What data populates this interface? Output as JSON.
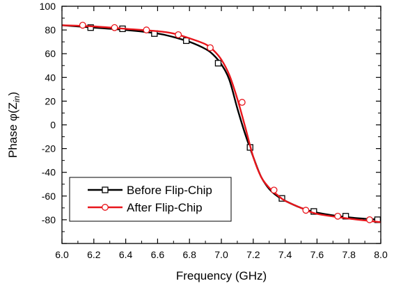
{
  "chart_data": {
    "type": "line",
    "xlabel": "Frequency (GHz)",
    "ylabel_main": "Phase φ(Z",
    "ylabel_sub": "in",
    "ylabel_close": ")",
    "xlim": [
      6.0,
      8.0
    ],
    "ylim": [
      -100,
      100
    ],
    "xticks": [
      6.0,
      6.2,
      6.4,
      6.6,
      6.8,
      7.0,
      7.2,
      7.4,
      7.6,
      7.8,
      8.0
    ],
    "yticks": [
      -100,
      -80,
      -60,
      -40,
      -20,
      0,
      20,
      40,
      60,
      80,
      100
    ],
    "xtick_labels": [
      "6.0",
      "6.2",
      "6.4",
      "6.6",
      "6.8",
      "7.0",
      "7.2",
      "7.4",
      "7.6",
      "7.8",
      "8.0"
    ],
    "ytick_labels": [
      "",
      "-80",
      "-60",
      "-40",
      "-20",
      "0",
      "20",
      "40",
      "60",
      "80",
      "100"
    ],
    "legend_position": "lower-left",
    "series": [
      {
        "name": "Before Flip-Chip",
        "color": "#000000",
        "marker": "square",
        "x": [
          6.0,
          6.2,
          6.4,
          6.6,
          6.7,
          6.8,
          6.9,
          6.95,
          7.0,
          7.05,
          7.1,
          7.15,
          7.2,
          7.25,
          7.3,
          7.35,
          7.4,
          7.5,
          7.6,
          7.8,
          8.0
        ],
        "y": [
          84,
          82,
          80,
          77,
          74,
          70,
          64,
          59,
          51,
          38,
          14,
          -8,
          -27,
          -44,
          -54,
          -60,
          -64,
          -70,
          -74,
          -78,
          -80
        ],
        "marker_x": [
          6.18,
          6.38,
          6.58,
          6.78,
          6.98,
          7.18,
          7.38,
          7.58,
          7.78,
          7.98
        ],
        "marker_y": [
          82,
          81,
          77,
          71,
          52,
          -19,
          -62,
          -73,
          -77,
          -80
        ]
      },
      {
        "name": "After Flip-Chip",
        "color": "#e8151b",
        "marker": "circle",
        "x": [
          6.0,
          6.2,
          6.4,
          6.6,
          6.7,
          6.8,
          6.9,
          6.95,
          7.0,
          7.05,
          7.1,
          7.15,
          7.2,
          7.25,
          7.3,
          7.35,
          7.4,
          7.5,
          7.6,
          7.8,
          8.0
        ],
        "y": [
          84,
          83,
          81,
          79,
          77,
          73,
          68,
          63,
          55,
          42,
          22,
          -2,
          -27,
          -44,
          -53,
          -59,
          -64,
          -70,
          -75,
          -79,
          -82
        ],
        "marker_x": [
          6.13,
          6.33,
          6.53,
          6.73,
          6.93,
          7.13,
          7.33,
          7.53,
          7.73,
          7.93
        ],
        "marker_y": [
          84,
          82,
          80,
          76,
          65,
          19,
          -55,
          -72,
          -77,
          -80
        ]
      }
    ]
  }
}
